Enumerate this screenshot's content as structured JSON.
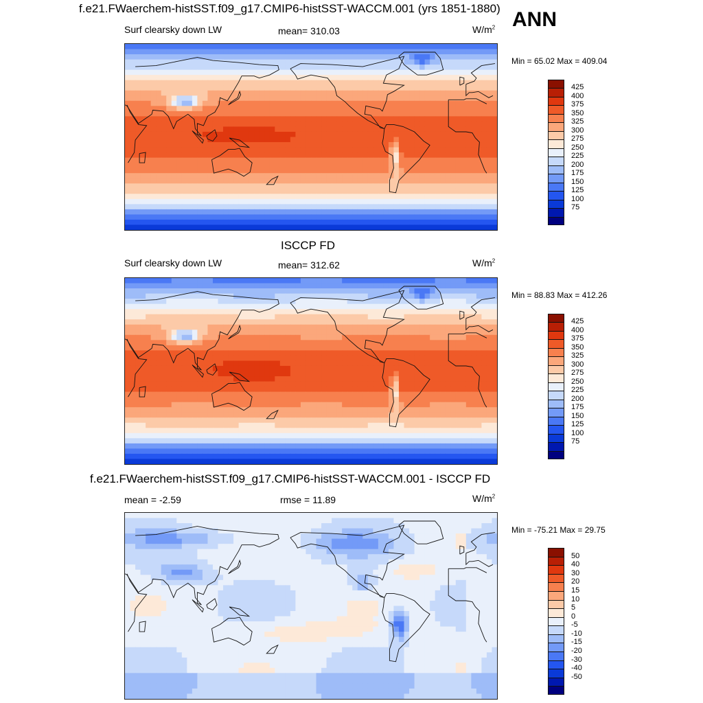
{
  "season": "ANN",
  "panels": [
    {
      "title": "f.e21.FWaerchem-histSST.f09_g17.CMIP6-histSST-WACCM.001 (yrs 1851-1880)",
      "left_label": "Surf clearsky down LW",
      "center_label": "mean= 310.03",
      "units": "W/m",
      "units_exp": "2",
      "minmax": "Min =  65.02 Max = 409.04"
    },
    {
      "title": "ISCCP FD",
      "left_label": "Surf clearsky down LW",
      "center_label": "mean= 312.62",
      "units": "W/m",
      "units_exp": "2",
      "minmax": "Min =  88.83 Max = 412.26"
    },
    {
      "title": "f.e21.FWaerchem-histSST.f09_g17.CMIP6-histSST-WACCM.001 - ISCCP FD",
      "left_label": "mean =  -2.59",
      "center_label": "rmse =  11.89",
      "units": "W/m",
      "units_exp": "2",
      "minmax": "Min = -75.21 Max =  29.75"
    }
  ],
  "chart_data": [
    {
      "type": "heatmap",
      "title": "f.e21.FWaerchem-histSST.f09_g17.CMIP6-histSST-WACCM.001 (yrs 1851-1880)",
      "variable": "Surf clearsky down LW",
      "units": "W/m2",
      "mean": 310.03,
      "min": 65.02,
      "max": 409.04,
      "x_range": [
        0,
        360
      ],
      "y_range": [
        -90,
        90
      ],
      "levels": [
        75,
        100,
        125,
        150,
        175,
        200,
        225,
        250,
        275,
        300,
        325,
        350,
        375,
        400,
        425
      ],
      "colors": [
        "#00007f",
        "#0018b0",
        "#0a3ad8",
        "#2456f0",
        "#4a78f5",
        "#739af7",
        "#9ebcf8",
        "#c6d9fa",
        "#e9f0fb",
        "#fde9d8",
        "#fccaa8",
        "#fba77b",
        "#f7804e",
        "#ef5a28",
        "#e0380f",
        "#b81f05",
        "#8a1000"
      ]
    },
    {
      "type": "heatmap",
      "title": "ISCCP FD",
      "variable": "Surf clearsky down LW",
      "units": "W/m2",
      "mean": 312.62,
      "min": 88.83,
      "max": 412.26,
      "x_range": [
        0,
        360
      ],
      "y_range": [
        -90,
        90
      ],
      "levels": [
        75,
        100,
        125,
        150,
        175,
        200,
        225,
        250,
        275,
        300,
        325,
        350,
        375,
        400,
        425
      ],
      "colors": [
        "#00007f",
        "#0018b0",
        "#0a3ad8",
        "#2456f0",
        "#4a78f5",
        "#739af7",
        "#9ebcf8",
        "#c6d9fa",
        "#e9f0fb",
        "#fde9d8",
        "#fccaa8",
        "#fba77b",
        "#f7804e",
        "#ef5a28",
        "#e0380f",
        "#b81f05",
        "#8a1000"
      ]
    },
    {
      "type": "heatmap",
      "title": "f.e21.FWaerchem-histSST.f09_g17.CMIP6-histSST-WACCM.001 - ISCCP FD",
      "units": "W/m2",
      "mean": -2.59,
      "rmse": 11.89,
      "min": -75.21,
      "max": 29.75,
      "x_range": [
        0,
        360
      ],
      "y_range": [
        -90,
        90
      ],
      "levels": [
        -50,
        -40,
        -30,
        -20,
        -15,
        -10,
        -5,
        0,
        5,
        10,
        15,
        20,
        30,
        40,
        50
      ],
      "colors": [
        "#00007f",
        "#0018b0",
        "#0a3ad8",
        "#2456f0",
        "#4a78f5",
        "#739af7",
        "#9ebcf8",
        "#c6d9fa",
        "#e9f0fb",
        "#fde9d8",
        "#fccaa8",
        "#fba77b",
        "#f7804e",
        "#ef5a28",
        "#e0380f",
        "#b81f05",
        "#8a1000"
      ]
    }
  ]
}
